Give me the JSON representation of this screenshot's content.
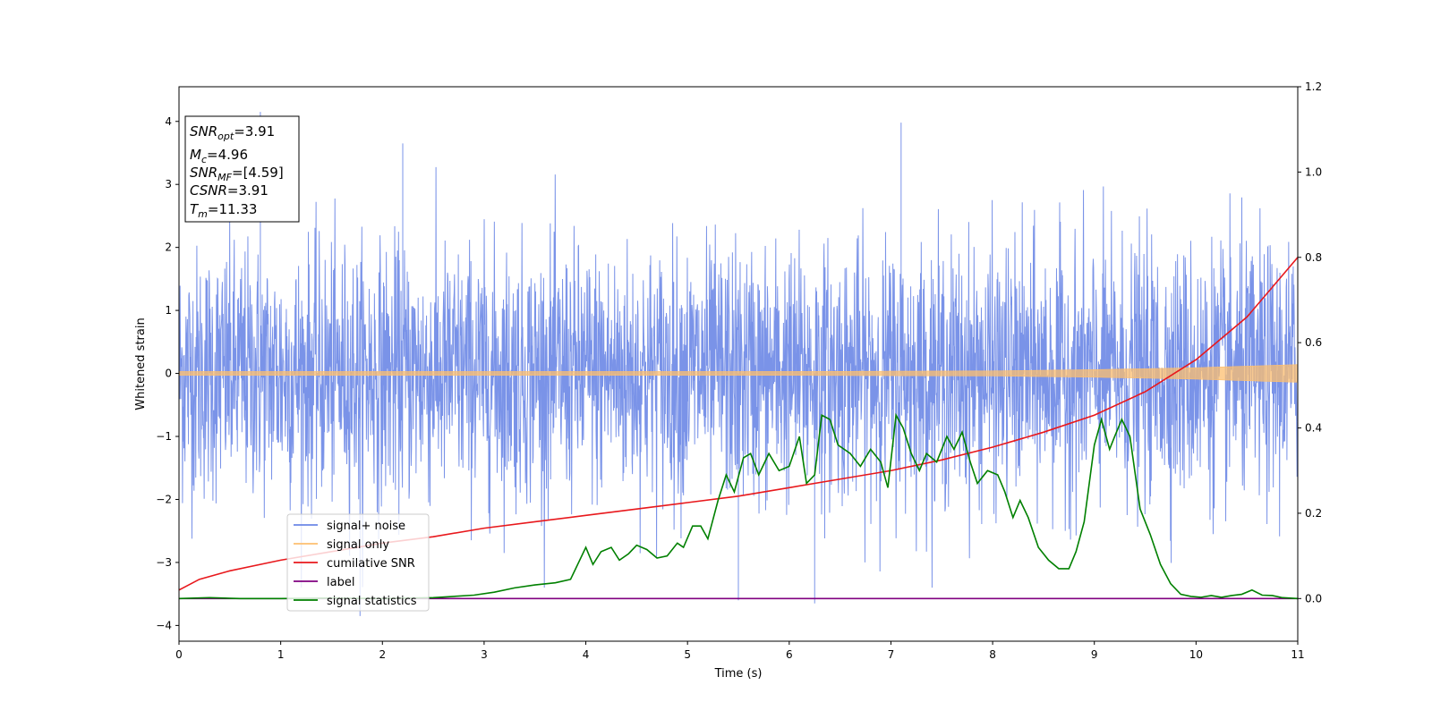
{
  "chart_data": {
    "type": "line",
    "title": "",
    "xlabel": "Time (s)",
    "ylabel": "Whitened strain",
    "ylabel_right": "",
    "xlim": [
      0,
      11
    ],
    "ylim": [
      -4.25,
      4.55
    ],
    "ylim_right": [
      -0.1,
      1.2
    ],
    "x_ticks": [
      0,
      1,
      2,
      3,
      4,
      5,
      6,
      7,
      8,
      9,
      10,
      11
    ],
    "y_ticks": [
      -4,
      -3,
      -2,
      -1,
      0,
      1,
      2,
      3,
      4
    ],
    "y_ticks_right": [
      0.0,
      0.2,
      0.4,
      0.6,
      0.8,
      1.0,
      1.2
    ],
    "y_tick_labels_right": [
      "0.0",
      "0.2",
      "0.4",
      "0.6",
      "0.8",
      "1.0",
      "1.2"
    ],
    "grid": false,
    "legend_position": "lower-left",
    "annotation": {
      "lines": [
        {
          "main": "SNR",
          "sub": "opt",
          "value": "=3.91"
        },
        {
          "main": "M",
          "sub": "c",
          "value": "=4.96"
        },
        {
          "main": "SNR",
          "sub": "MF",
          "value": "=[4.59]"
        },
        {
          "main": "CSNR",
          "sub": "",
          "value": "=3.91"
        },
        {
          "main": "T",
          "sub": "m",
          "value": "=11.33"
        }
      ]
    },
    "series": [
      {
        "name": "signal+ noise",
        "color": "#6b87e6",
        "axis": "left",
        "kind": "noise",
        "approx_range": [
          -3.7,
          4.2
        ],
        "peaks": [
          [
            0.8,
            4.15
          ],
          [
            2.2,
            3.65
          ],
          [
            7.1,
            3.98
          ],
          [
            6.25,
            -3.65
          ],
          [
            1.78,
            -3.85
          ],
          [
            5.5,
            -3.6
          ]
        ]
      },
      {
        "name": "signal only",
        "color": "#fdbf6f",
        "axis": "left",
        "kind": "chirp",
        "envelope": {
          "x": [
            0,
            2,
            4,
            6,
            7,
            8,
            9,
            10,
            11
          ],
          "amplitude": [
            0.03,
            0.03,
            0.03,
            0.03,
            0.035,
            0.04,
            0.06,
            0.09,
            0.14
          ]
        }
      },
      {
        "name": "cumilative SNR",
        "color": "#e8181c",
        "axis": "right",
        "x": [
          0.0,
          0.2,
          0.5,
          1.0,
          1.5,
          2.0,
          2.5,
          3.0,
          3.5,
          4.0,
          4.5,
          5.0,
          5.5,
          6.0,
          6.5,
          7.0,
          7.5,
          8.0,
          8.5,
          9.0,
          9.5,
          10.0,
          10.5,
          11.0
        ],
        "values": [
          0.02,
          0.045,
          0.065,
          0.09,
          0.11,
          0.13,
          0.145,
          0.165,
          0.18,
          0.195,
          0.21,
          0.225,
          0.24,
          0.26,
          0.28,
          0.3,
          0.325,
          0.355,
          0.39,
          0.43,
          0.485,
          0.56,
          0.66,
          0.8
        ]
      },
      {
        "name": "label",
        "color": "#800080",
        "axis": "right",
        "x": [
          0,
          11
        ],
        "values": [
          0.0,
          0.0
        ]
      },
      {
        "name": "signal statistics",
        "color": "#008000",
        "axis": "right",
        "x": [
          0.0,
          0.3,
          0.6,
          1.0,
          1.5,
          2.0,
          2.5,
          2.9,
          3.1,
          3.3,
          3.5,
          3.7,
          3.85,
          4.0,
          4.07,
          4.15,
          4.25,
          4.33,
          4.42,
          4.5,
          4.6,
          4.7,
          4.8,
          4.9,
          4.96,
          5.05,
          5.13,
          5.2,
          5.3,
          5.38,
          5.46,
          5.55,
          5.62,
          5.7,
          5.8,
          5.9,
          6.0,
          6.1,
          6.17,
          6.25,
          6.32,
          6.4,
          6.48,
          6.6,
          6.7,
          6.8,
          6.9,
          6.97,
          7.05,
          7.12,
          7.2,
          7.28,
          7.35,
          7.45,
          7.55,
          7.62,
          7.7,
          7.78,
          7.85,
          7.95,
          8.05,
          8.12,
          8.2,
          8.27,
          8.35,
          8.45,
          8.55,
          8.65,
          8.75,
          8.82,
          8.9,
          9.0,
          9.07,
          9.15,
          9.2,
          9.27,
          9.35,
          9.45,
          9.55,
          9.65,
          9.75,
          9.85,
          9.95,
          10.05,
          10.15,
          10.25,
          10.35,
          10.45,
          10.55,
          10.65,
          10.75,
          10.85,
          11.0
        ],
        "values": [
          0.0,
          0.002,
          0.0,
          0.0,
          0.001,
          0.0,
          0.002,
          0.008,
          0.015,
          0.025,
          0.032,
          0.037,
          0.045,
          0.12,
          0.08,
          0.11,
          0.12,
          0.09,
          0.105,
          0.125,
          0.115,
          0.095,
          0.1,
          0.13,
          0.12,
          0.17,
          0.17,
          0.14,
          0.23,
          0.29,
          0.25,
          0.33,
          0.34,
          0.29,
          0.34,
          0.3,
          0.31,
          0.38,
          0.27,
          0.29,
          0.43,
          0.42,
          0.36,
          0.34,
          0.31,
          0.35,
          0.32,
          0.26,
          0.43,
          0.4,
          0.34,
          0.3,
          0.34,
          0.32,
          0.38,
          0.35,
          0.39,
          0.32,
          0.27,
          0.3,
          0.29,
          0.25,
          0.19,
          0.23,
          0.19,
          0.12,
          0.09,
          0.07,
          0.07,
          0.11,
          0.18,
          0.36,
          0.42,
          0.35,
          0.38,
          0.42,
          0.38,
          0.21,
          0.15,
          0.08,
          0.035,
          0.01,
          0.005,
          0.003,
          0.007,
          0.003,
          0.007,
          0.01,
          0.02,
          0.008,
          0.007,
          0.002,
          0.0
        ]
      }
    ]
  }
}
